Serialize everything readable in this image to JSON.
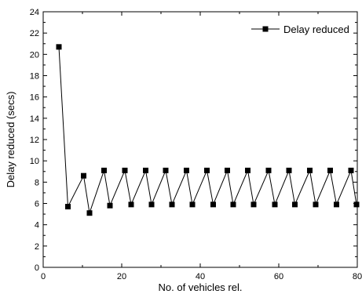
{
  "chart_data": {
    "type": "line",
    "title": "",
    "xlabel": "No. of vehicles rel.",
    "ylabel": "Delay reduced (secs)",
    "xlim": [
      0,
      80
    ],
    "ylim": [
      0,
      24
    ],
    "xticks": [
      0,
      20,
      40,
      60,
      80
    ],
    "yticks": [
      0,
      2,
      4,
      6,
      8,
      10,
      12,
      14,
      16,
      18,
      20,
      22,
      24
    ],
    "legend_position": "top-right",
    "grid": false,
    "series": [
      {
        "name": "Delay reduced",
        "color": "#000000",
        "marker": "square",
        "x": [
          4,
          6.3,
          10.3,
          11.8,
          15.5,
          17,
          20.8,
          22.4,
          26.1,
          27.6,
          31.2,
          32.8,
          36.5,
          38,
          41.7,
          43.3,
          46.9,
          48.4,
          52.1,
          53.6,
          57.4,
          59,
          62.6,
          64.1,
          67.9,
          69.4,
          73.1,
          74.7,
          78.4,
          79.8
        ],
        "y": [
          20.7,
          5.7,
          8.6,
          5.1,
          9.1,
          5.8,
          9.1,
          5.9,
          9.1,
          5.9,
          9.1,
          5.9,
          9.1,
          5.9,
          9.1,
          5.9,
          9.1,
          5.9,
          9.1,
          5.9,
          9.1,
          5.9,
          9.1,
          5.9,
          9.1,
          5.9,
          9.1,
          5.9,
          9.1,
          5.9
        ]
      }
    ]
  }
}
